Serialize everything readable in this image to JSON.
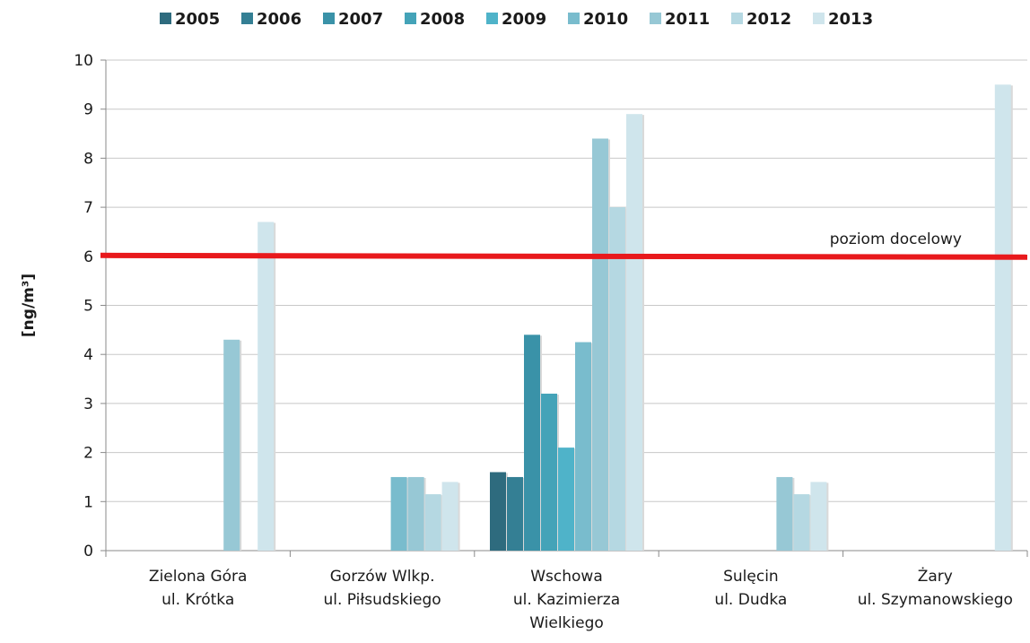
{
  "chart_data": {
    "type": "bar",
    "title": "",
    "xlabel": "",
    "ylabel": "[ng/m³]",
    "ylim": [
      0,
      10
    ],
    "yticks": [
      0,
      1,
      2,
      3,
      4,
      5,
      6,
      7,
      8,
      9,
      10
    ],
    "grid": true,
    "legend_position": "top",
    "categories": [
      [
        "Zielona Góra",
        "ul. Krótka"
      ],
      [
        "Gorzów Wlkp.",
        "ul. Piłsudskiego"
      ],
      [
        "Wschowa",
        "ul. Kazimierza",
        "Wielkiego"
      ],
      [
        "Sulęcin",
        "ul. Dudka"
      ],
      [
        "Żary",
        "ul. Szymanowskiego"
      ]
    ],
    "series": [
      {
        "name": "2005",
        "color": "#2e6b7e",
        "values": [
          null,
          null,
          1.6,
          null,
          null
        ]
      },
      {
        "name": "2006",
        "color": "#347f94",
        "values": [
          null,
          null,
          1.5,
          null,
          null
        ]
      },
      {
        "name": "2007",
        "color": "#3a92a8",
        "values": [
          null,
          null,
          4.4,
          null,
          null
        ]
      },
      {
        "name": "2008",
        "color": "#44a3b8",
        "values": [
          null,
          null,
          3.2,
          null,
          null
        ]
      },
      {
        "name": "2009",
        "color": "#4fb3c9",
        "values": [
          null,
          null,
          2.1,
          null,
          null
        ]
      },
      {
        "name": "2010",
        "color": "#79bccd",
        "values": [
          null,
          1.5,
          4.25,
          null,
          null
        ]
      },
      {
        "name": "2011",
        "color": "#97c8d5",
        "values": [
          4.3,
          1.5,
          8.4,
          1.5,
          null
        ]
      },
      {
        "name": "2012",
        "color": "#b5d8e2",
        "values": [
          null,
          1.15,
          7.0,
          1.15,
          null
        ]
      },
      {
        "name": "2013",
        "color": "#cfe5ec",
        "values": [
          6.7,
          1.4,
          8.9,
          1.4,
          9.5
        ]
      }
    ],
    "reference_line": {
      "value": 6,
      "label": "poziom docelowy",
      "color": "#e8191c"
    }
  }
}
